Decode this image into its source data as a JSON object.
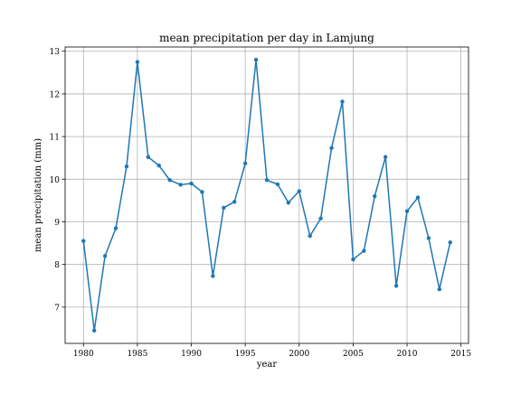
{
  "chart_data": {
    "type": "line",
    "title": "mean precipitation per day in Lamjung",
    "xlabel": "year",
    "ylabel": "mean precipitation (mm)",
    "xlim": [
      1978.3,
      2015.7
    ],
    "ylim": [
      6.15,
      13.1
    ],
    "xticks": [
      1980,
      1985,
      1990,
      1995,
      2000,
      2005,
      2010,
      2015
    ],
    "yticks": [
      7,
      8,
      9,
      10,
      11,
      12,
      13
    ],
    "grid": true,
    "series": [
      {
        "color": "#1f77b4",
        "marker": "circle",
        "x": [
          1980,
          1981,
          1982,
          1983,
          1984,
          1985,
          1986,
          1987,
          1988,
          1989,
          1990,
          1991,
          1992,
          1993,
          1994,
          1995,
          1996,
          1997,
          1998,
          1999,
          2000,
          2001,
          2002,
          2003,
          2004,
          2005,
          2006,
          2007,
          2008,
          2009,
          2010,
          2011,
          2012,
          2013,
          2014
        ],
        "y": [
          8.55,
          6.45,
          8.2,
          8.85,
          10.3,
          12.75,
          10.52,
          10.32,
          9.98,
          9.87,
          9.9,
          9.7,
          7.73,
          9.33,
          9.47,
          10.37,
          12.8,
          9.98,
          9.88,
          9.45,
          9.72,
          8.67,
          9.08,
          10.73,
          11.82,
          8.12,
          8.32,
          9.6,
          10.52,
          7.5,
          9.25,
          9.57,
          8.62,
          7.42,
          8.52
        ]
      }
    ]
  }
}
